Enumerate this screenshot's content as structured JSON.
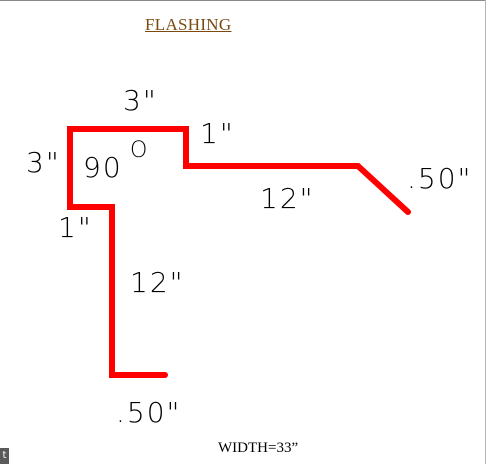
{
  "title": "FLASHING",
  "width_label": "WIDTH=33”",
  "corner_badge": "t",
  "stroke_color": "#ff0000",
  "dimensions": {
    "top_3": "3\"",
    "left_3": "3\"",
    "angle_90": "90",
    "degree_mark": "O",
    "top_right_1": "1\"",
    "lower_left_1": "1\"",
    "horizontal_12": "12\"",
    "vertical_12": "12\"",
    "right_hem": ".50\"",
    "bottom_hem": ".50\""
  }
}
